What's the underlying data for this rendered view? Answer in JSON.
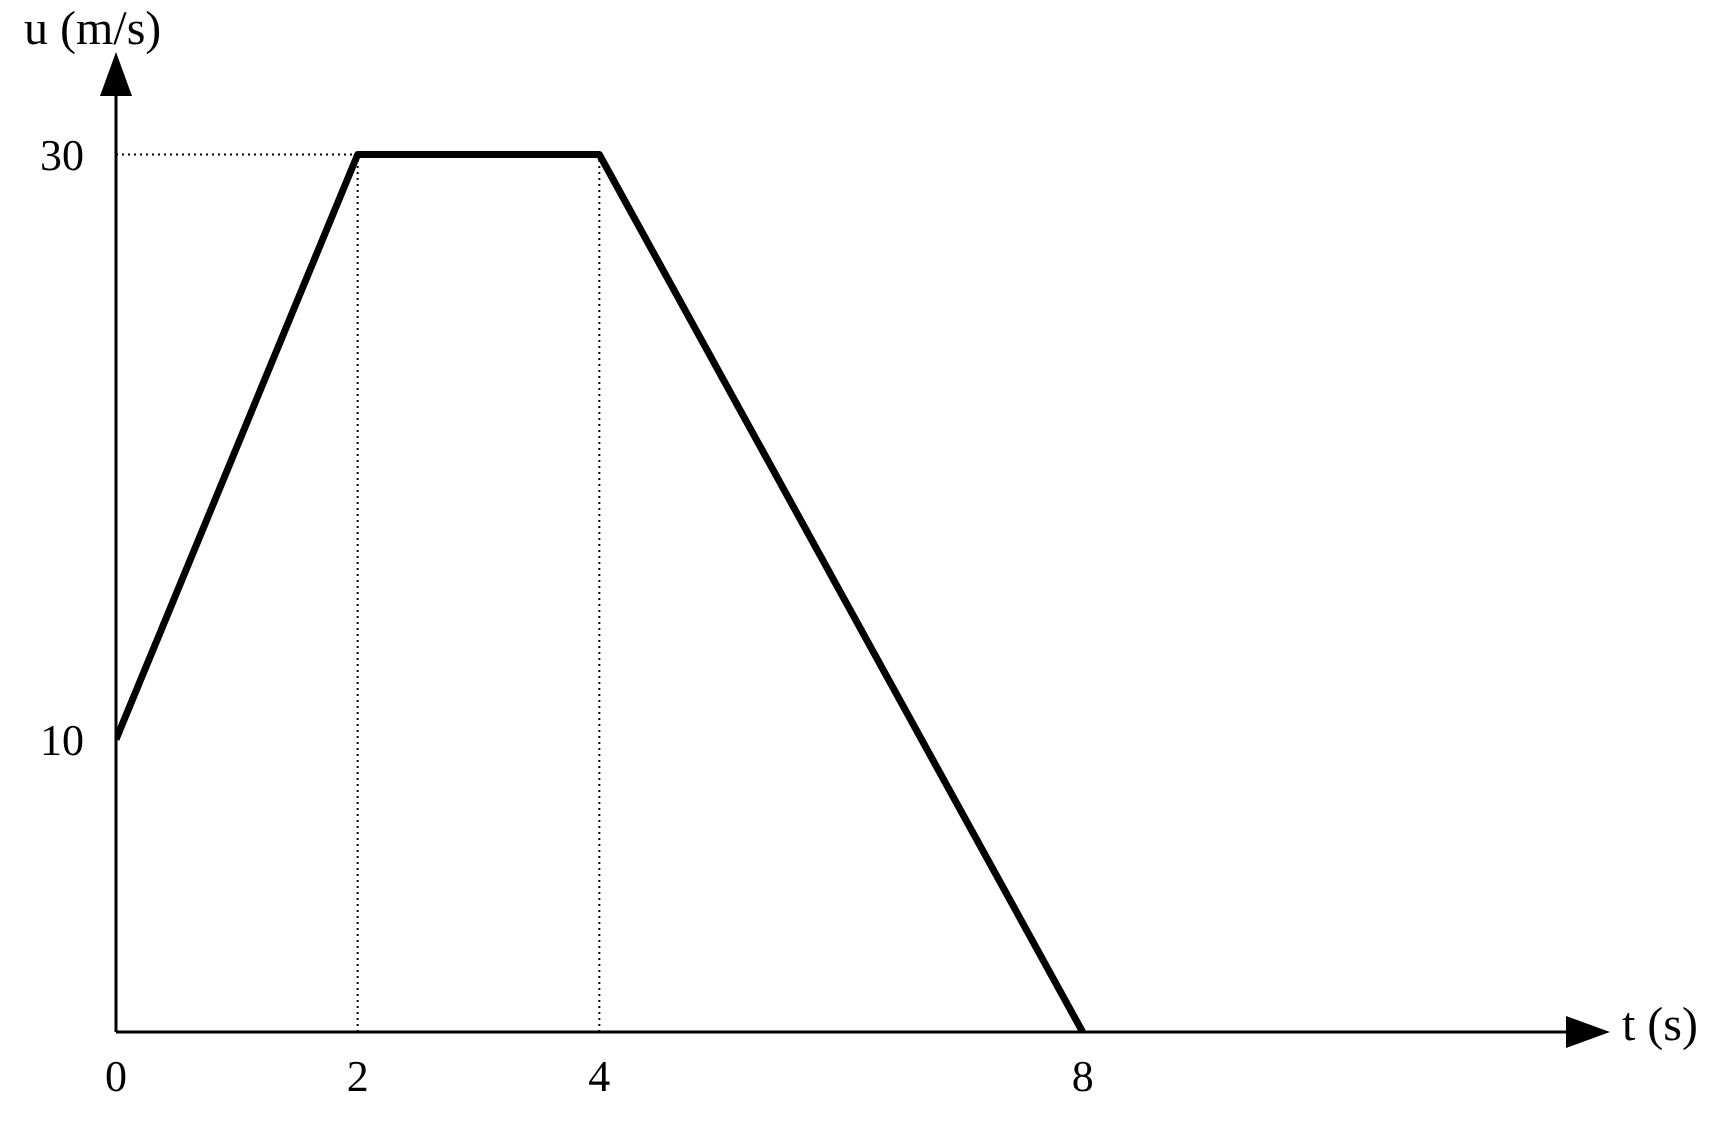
{
  "chart_data": {
    "type": "line",
    "xlabel": "t (s)",
    "ylabel": "u (m/s)",
    "x": [
      0,
      2,
      4,
      8
    ],
    "series": [
      {
        "color": "#000000",
        "values": [
          10,
          30,
          30,
          0
        ]
      }
    ],
    "xlim": [
      0,
      12
    ],
    "xticks": [
      0,
      2,
      4,
      8
    ],
    "ylim": [
      0,
      32
    ],
    "yticks": [
      10,
      30
    ],
    "ref_lines": [
      {
        "axis": "x",
        "value": 2,
        "line_style": "dotted",
        "color": "#000000"
      },
      {
        "axis": "x",
        "value": 4,
        "line_style": "dotted",
        "color": "#000000"
      },
      {
        "axis": "y",
        "value": 30,
        "line_style": "dotted",
        "color": "#000000"
      }
    ],
    "grid": false,
    "legend": false,
    "marker": "none",
    "line_style": "solid"
  }
}
